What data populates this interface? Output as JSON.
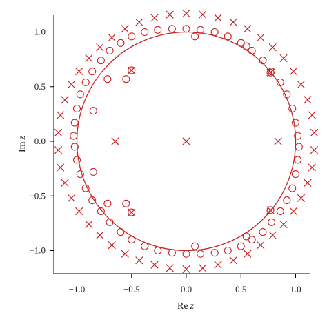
{
  "chart_data": {
    "type": "scatter",
    "title": "",
    "xlabel": {
      "prefix": "Re",
      "var": "z"
    },
    "ylabel": {
      "prefix": "Im",
      "var": "z"
    },
    "xlim": [
      -1.2,
      1.2
    ],
    "ylim": [
      -1.2,
      1.2
    ],
    "xticks": [
      -1.0,
      -0.5,
      0.0,
      0.5,
      1.0
    ],
    "yticks": [
      -1.0,
      -0.5,
      0.0,
      0.5,
      1.0
    ],
    "xtick_labels": [
      "−1.0",
      "−0.5",
      "0.0",
      "0.5",
      "1.0"
    ],
    "ytick_labels": [
      "−1.0",
      "−0.5",
      "0.0",
      "0.5",
      "1.0"
    ],
    "grid": false,
    "legend": "none",
    "color": "#cc2222",
    "unit_circle": {
      "center": [
        0,
        0
      ],
      "radius": 1.0
    },
    "series": [
      {
        "marker": "cross",
        "x": [
          -0.65,
          0.0,
          0.84,
          -0.5,
          -0.5,
          0.77,
          0.77,
          0.0,
          0.15,
          0.29,
          0.43,
          0.56,
          0.68,
          0.79,
          0.89,
          0.98,
          1.05,
          1.11,
          1.15,
          1.17,
          1.17,
          1.15,
          1.11,
          1.05,
          0.98,
          0.89,
          0.79,
          0.68,
          0.56,
          0.43,
          0.29,
          0.15,
          0.0,
          -0.15,
          -0.29,
          -0.43,
          -0.56,
          -0.68,
          -0.79,
          -0.89,
          -0.98,
          -1.05,
          -1.11,
          -1.15,
          -1.17,
          -1.17,
          -1.15,
          -1.11,
          -1.05,
          -0.98,
          -0.89,
          -0.79,
          -0.68,
          -0.56,
          -0.43,
          -0.29,
          -0.15
        ],
        "y": [
          0.0,
          0.0,
          0.0,
          0.65,
          -0.65,
          0.63,
          -0.63,
          1.17,
          1.16,
          1.13,
          1.09,
          1.03,
          0.95,
          0.86,
          0.76,
          0.64,
          0.52,
          0.38,
          0.24,
          0.08,
          -0.08,
          -0.24,
          -0.38,
          -0.52,
          -0.64,
          -0.76,
          -0.86,
          -0.95,
          -1.03,
          -1.09,
          -1.13,
          -1.16,
          -1.17,
          -1.16,
          -1.13,
          -1.09,
          -1.03,
          -0.95,
          -0.86,
          -0.76,
          -0.64,
          -0.52,
          -0.38,
          -0.24,
          -0.08,
          0.08,
          0.24,
          0.38,
          0.52,
          0.64,
          0.76,
          0.86,
          0.95,
          1.03,
          1.09,
          1.13,
          1.16
        ]
      },
      {
        "marker": "circle",
        "x": [
          -0.5,
          -0.5,
          -0.72,
          -0.72,
          0.77,
          0.77,
          0.0,
          0.13,
          0.26,
          0.38,
          0.5,
          0.6,
          0.7,
          0.78,
          0.86,
          0.92,
          0.97,
          1.0,
          1.02,
          1.03,
          1.02,
          1.0,
          0.97,
          0.92,
          0.86,
          0.78,
          0.7,
          0.6,
          0.5,
          0.38,
          0.26,
          0.13,
          0.0,
          -0.13,
          -0.26,
          -0.38,
          -0.5,
          -0.6,
          -0.7,
          -0.78,
          -0.86,
          -0.92,
          -0.97,
          -1.0,
          -1.02,
          -1.03,
          -1.02,
          -1.0,
          -0.97,
          -0.92,
          -0.86,
          -0.78,
          -0.7,
          -0.6,
          -0.5,
          -0.38,
          -0.26,
          -0.13,
          -0.55,
          -0.55,
          0.08,
          0.08,
          -0.85,
          -0.85,
          0.55,
          0.55
        ],
        "y": [
          0.65,
          -0.65,
          0.57,
          -0.57,
          0.63,
          -0.63,
          1.03,
          1.02,
          1.0,
          0.96,
          0.9,
          0.83,
          0.74,
          0.64,
          0.54,
          0.43,
          0.3,
          0.17,
          0.05,
          -0.05,
          -0.17,
          -0.3,
          -0.43,
          -0.54,
          -0.64,
          -0.74,
          -0.83,
          -0.9,
          -0.96,
          -1.0,
          -1.02,
          -1.03,
          -1.03,
          -1.02,
          -1.0,
          -0.96,
          -0.9,
          -0.83,
          -0.74,
          -0.64,
          -0.54,
          -0.43,
          -0.3,
          -0.17,
          -0.05,
          0.05,
          0.17,
          0.3,
          0.43,
          0.54,
          0.64,
          0.74,
          0.83,
          0.9,
          0.96,
          1.0,
          1.02,
          1.03,
          0.57,
          -0.57,
          0.96,
          -0.96,
          0.28,
          -0.28,
          0.87,
          -0.87
        ]
      }
    ]
  }
}
